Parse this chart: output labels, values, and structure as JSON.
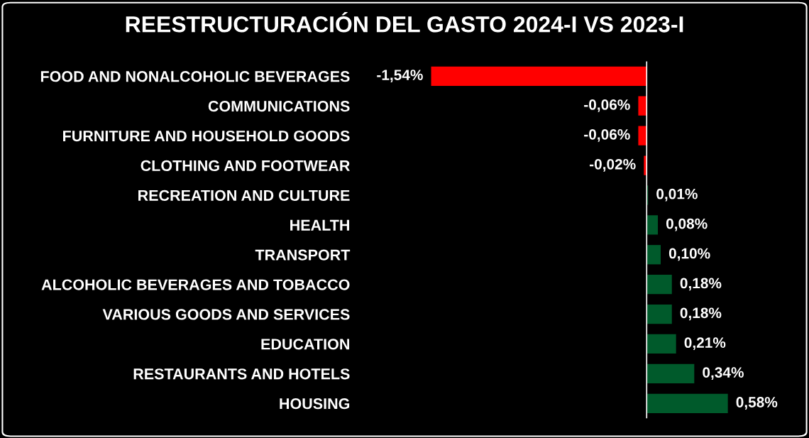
{
  "chart_data": {
    "type": "bar",
    "orientation": "horizontal",
    "title": "REESTRUCTURACIÓN DEL GASTO 2024-I VS 2023-I",
    "categories": [
      "FOOD AND NONALCOHOLIC BEVERAGES",
      "COMMUNICATIONS",
      "FURNITURE AND HOUSEHOLD GOODS",
      "CLOTHING AND FOOTWEAR",
      "RECREATION AND CULTURE",
      "HEALTH",
      "TRANSPORT",
      "ALCOHOLIC BEVERAGES AND TOBACCO",
      "VARIOUS GOODS AND SERVICES",
      "EDUCATION",
      "RESTAURANTS AND HOTELS",
      "HOUSING"
    ],
    "values": [
      -1.54,
      -0.06,
      -0.06,
      -0.02,
      0.01,
      0.08,
      0.1,
      0.18,
      0.18,
      0.21,
      0.34,
      0.58
    ],
    "colors": [
      "#ff0000",
      "#ff0000",
      "#ff0000",
      "#ff0000",
      "#005a2b",
      "#005a2b",
      "#005a2b",
      "#005a2b",
      "#005a2b",
      "#005a2b",
      "#005a2b",
      "#005a2b"
    ],
    "value_labels": [
      "-1,54%",
      "-0,06%",
      "-0,06%",
      "-0,02%",
      "0,01%",
      "0,08%",
      "0,10%",
      "0,18%",
      "0,18%",
      "0,21%",
      "0,34%",
      "0,58%"
    ],
    "ref_lines": [
      {
        "axis": "x",
        "value": 0,
        "color": "#ffffff"
      }
    ],
    "tick_labels": "y",
    "grid": false,
    "legend": false
  }
}
